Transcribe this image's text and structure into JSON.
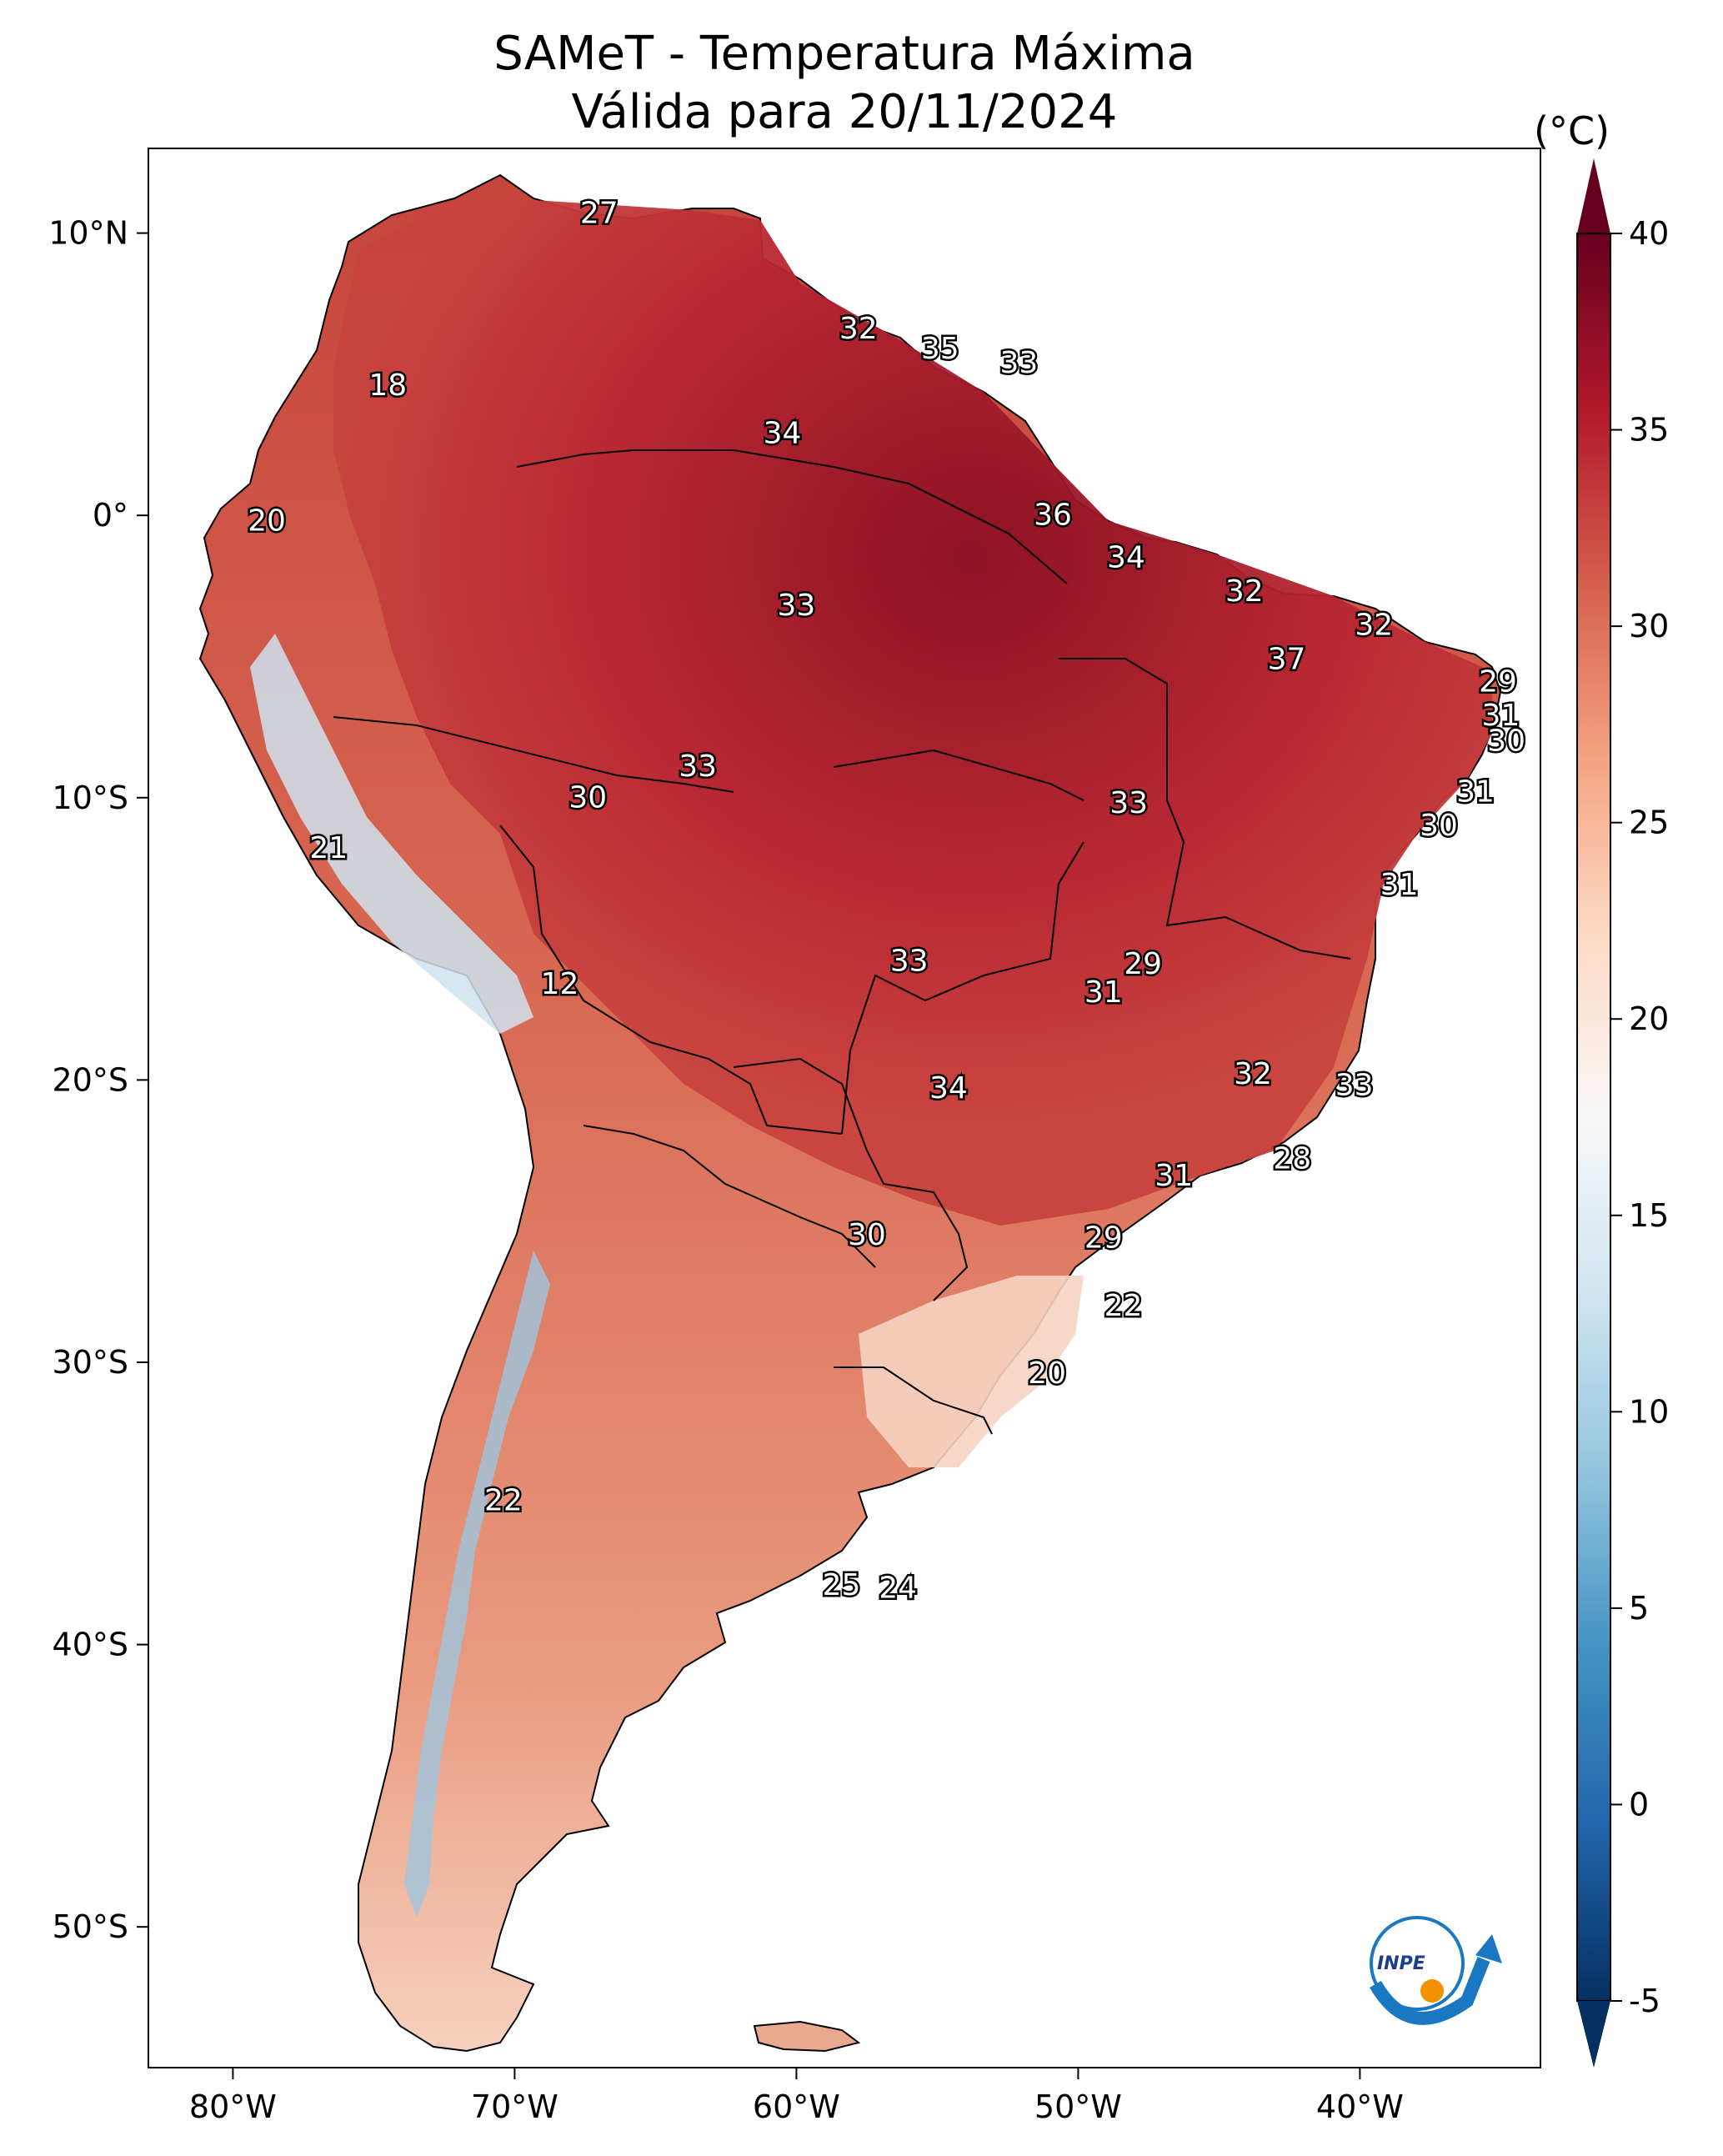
{
  "title_line1": "SAMeT - Temperatura Máxima",
  "title_line2": "Válida para 20/11/2024",
  "colorbar": {
    "unit": "(°C)",
    "min": -5,
    "max": 40,
    "ticks": [
      "40",
      "35",
      "30",
      "25",
      "20",
      "15",
      "10",
      "5",
      "0",
      "-5"
    ],
    "colors": [
      "#053061",
      "#2166ac",
      "#4393c3",
      "#92c5de",
      "#d1e5f0",
      "#f7f7f7",
      "#fddbc7",
      "#f4a582",
      "#d6604d",
      "#b2182b",
      "#67001f"
    ]
  },
  "axes": {
    "lon_ticks": [
      "80°W",
      "70°W",
      "60°W",
      "50°W",
      "40°W"
    ],
    "lat_ticks": [
      "10°N",
      "0°",
      "10°S",
      "20°S",
      "30°S",
      "40°S",
      "50°S"
    ]
  },
  "contour_labels": [
    {
      "value": "27",
      "lon": -67.0,
      "lat": 10.7
    },
    {
      "value": "18",
      "lon": -74.5,
      "lat": 4.6
    },
    {
      "value": "32",
      "lon": -57.8,
      "lat": 6.6
    },
    {
      "value": "35",
      "lon": -54.9,
      "lat": 5.9
    },
    {
      "value": "33",
      "lon": -52.1,
      "lat": 5.4
    },
    {
      "value": "34",
      "lon": -60.5,
      "lat": 2.9
    },
    {
      "value": "20",
      "lon": -78.8,
      "lat": -0.2
    },
    {
      "value": "36",
      "lon": -50.9,
      "lat": 0.0
    },
    {
      "value": "34",
      "lon": -48.3,
      "lat": -1.5
    },
    {
      "value": "32",
      "lon": -44.1,
      "lat": -2.7
    },
    {
      "value": "33",
      "lon": -60.0,
      "lat": -3.2
    },
    {
      "value": "32",
      "lon": -39.5,
      "lat": -3.9
    },
    {
      "value": "37",
      "lon": -42.6,
      "lat": -5.1
    },
    {
      "value": "29",
      "lon": -35.1,
      "lat": -5.9
    },
    {
      "value": "31",
      "lon": -35.0,
      "lat": -7.1
    },
    {
      "value": "30",
      "lon": -34.8,
      "lat": -8.0
    },
    {
      "value": "33",
      "lon": -63.5,
      "lat": -8.9
    },
    {
      "value": "30",
      "lon": -67.4,
      "lat": -10.0
    },
    {
      "value": "33",
      "lon": -48.2,
      "lat": -10.2
    },
    {
      "value": "31",
      "lon": -35.9,
      "lat": -9.8
    },
    {
      "value": "30",
      "lon": -37.2,
      "lat": -11.0
    },
    {
      "value": "21",
      "lon": -76.6,
      "lat": -11.8
    },
    {
      "value": "31",
      "lon": -38.6,
      "lat": -13.1
    },
    {
      "value": "33",
      "lon": -56.0,
      "lat": -15.8
    },
    {
      "value": "29",
      "lon": -47.7,
      "lat": -15.9
    },
    {
      "value": "31",
      "lon": -49.1,
      "lat": -16.9
    },
    {
      "value": "12",
      "lon": -68.4,
      "lat": -16.6
    },
    {
      "value": "32",
      "lon": -43.8,
      "lat": -19.8
    },
    {
      "value": "33",
      "lon": -40.2,
      "lat": -20.2
    },
    {
      "value": "34",
      "lon": -54.6,
      "lat": -20.3
    },
    {
      "value": "28",
      "lon": -42.4,
      "lat": -22.8
    },
    {
      "value": "31",
      "lon": -46.6,
      "lat": -23.4
    },
    {
      "value": "30",
      "lon": -57.5,
      "lat": -25.5
    },
    {
      "value": "29",
      "lon": -49.1,
      "lat": -25.6
    },
    {
      "value": "22",
      "lon": -48.4,
      "lat": -28.0
    },
    {
      "value": "20",
      "lon": -51.1,
      "lat": -30.4
    },
    {
      "value": "22",
      "lon": -70.4,
      "lat": -34.9
    },
    {
      "value": "25",
      "lon": -58.4,
      "lat": -37.9
    },
    {
      "value": "24",
      "lon": -56.4,
      "lat": -38.0
    }
  ],
  "logo_text": "INPE"
}
